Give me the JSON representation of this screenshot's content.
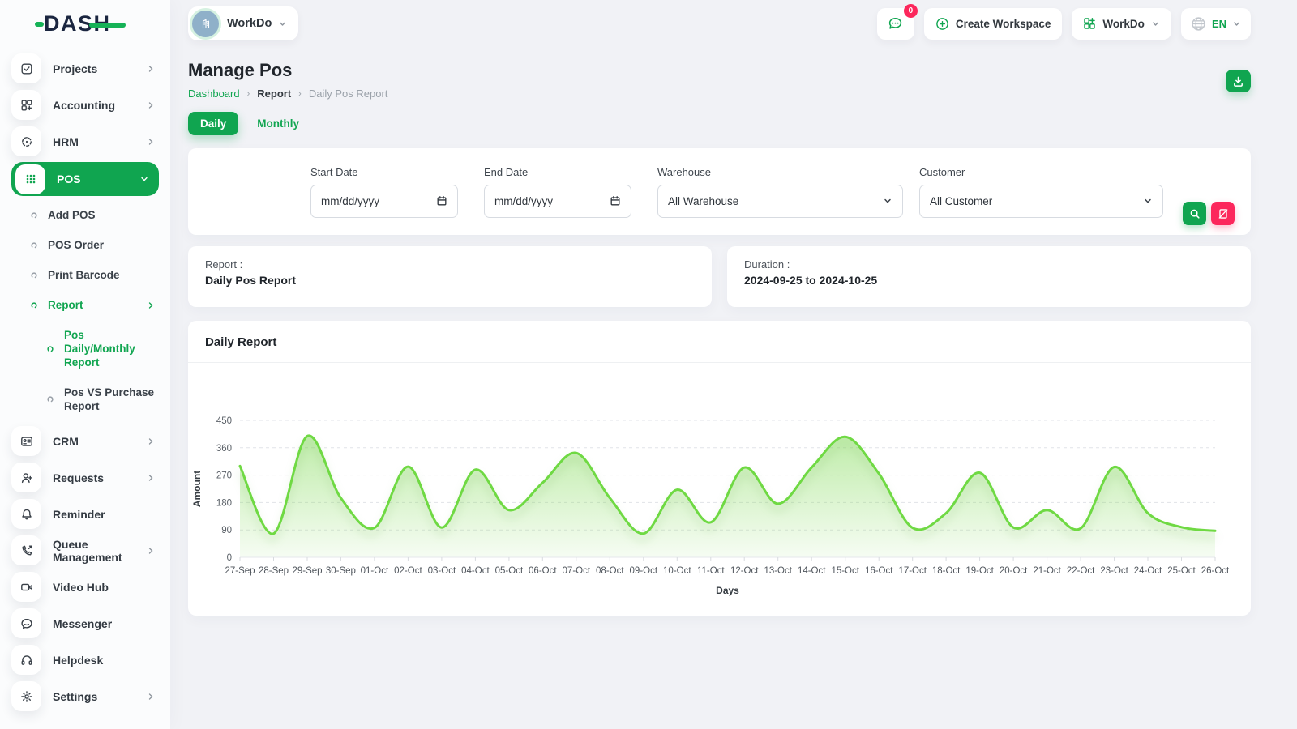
{
  "brand": {
    "name": "DASH"
  },
  "colors": {
    "primary_green": "#10a550",
    "chart_line_green": "#6fd943",
    "danger_pink": "#fc275c"
  },
  "topbar": {
    "workspace_name": "WorkDo",
    "messages_badge": "0",
    "create_workspace_label": "Create Workspace",
    "workdo_button_label": "WorkDo",
    "language": "EN"
  },
  "sidebar": {
    "items": [
      {
        "label": "Projects"
      },
      {
        "label": "Accounting"
      },
      {
        "label": "HRM"
      },
      {
        "label": "POS"
      },
      {
        "label": "CRM"
      },
      {
        "label": "Requests"
      },
      {
        "label": "Reminder"
      },
      {
        "label": "Queue Management"
      },
      {
        "label": "Video Hub"
      },
      {
        "label": "Messenger"
      },
      {
        "label": "Helpdesk"
      },
      {
        "label": "Settings"
      }
    ],
    "pos_children": [
      {
        "label": "Add POS"
      },
      {
        "label": "POS Order"
      },
      {
        "label": "Print Barcode"
      },
      {
        "label": "Report"
      }
    ],
    "report_children": [
      {
        "label": "Pos Daily/Monthly Report"
      },
      {
        "label": "Pos VS Purchase Report"
      }
    ]
  },
  "page": {
    "title": "Manage Pos",
    "breadcrumb": [
      "Dashboard",
      "Report",
      "Daily Pos Report"
    ]
  },
  "tabs": {
    "daily": "Daily",
    "monthly": "Monthly"
  },
  "filters": {
    "start_date": {
      "label": "Start Date",
      "placeholder": "mm/dd/yyyy"
    },
    "end_date": {
      "label": "End Date",
      "placeholder": "mm/dd/yyyy"
    },
    "warehouse": {
      "label": "Warehouse",
      "value": "All Warehouse"
    },
    "customer": {
      "label": "Customer",
      "value": "All Customer"
    }
  },
  "summary": {
    "report_label": "Report :",
    "report_value": "Daily Pos Report",
    "duration_label": "Duration :",
    "duration_value": "2024-09-25 to 2024-10-25"
  },
  "chart_data": {
    "type": "area",
    "title": "Daily Report",
    "xlabel": "Days",
    "ylabel": "Amount",
    "ylim": [
      0,
      450
    ],
    "yticks": [
      0,
      90,
      180,
      270,
      360,
      450
    ],
    "grid": true,
    "legend": "none",
    "categories": [
      "27-Sep",
      "28-Sep",
      "29-Sep",
      "30-Sep",
      "01-Oct",
      "02-Oct",
      "03-Oct",
      "04-Oct",
      "05-Oct",
      "06-Oct",
      "07-Oct",
      "08-Oct",
      "09-Oct",
      "10-Oct",
      "11-Oct",
      "12-Oct",
      "13-Oct",
      "14-Oct",
      "15-Oct",
      "16-Oct",
      "17-Oct",
      "18-Oct",
      "19-Oct",
      "20-Oct",
      "21-Oct",
      "22-Oct",
      "23-Oct",
      "24-Oct",
      "25-Oct",
      "26-Oct"
    ],
    "series": [
      {
        "name": "Amount",
        "values": [
          300,
          78,
          398,
          195,
          97,
          298,
          98,
          288,
          155,
          245,
          343,
          195,
          78,
          222,
          115,
          295,
          176,
          295,
          396,
          275,
          97,
          145,
          278,
          98,
          155,
          95,
          297,
          145,
          99,
          87
        ]
      }
    ]
  }
}
